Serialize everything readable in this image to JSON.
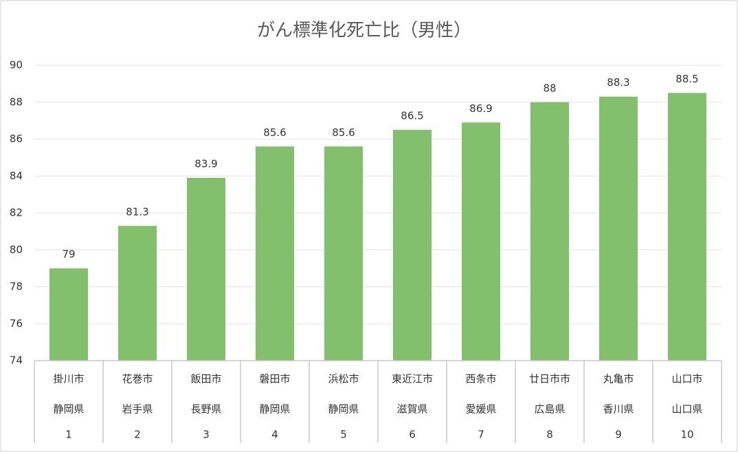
{
  "chart_data": {
    "type": "bar",
    "title": "がん標準化死亡比（男性）",
    "categories": [
      "掛川市",
      "花巻市",
      "飯田市",
      "磐田市",
      "浜松市",
      "東近江市",
      "西条市",
      "廿日市市",
      "丸亀市",
      "山口市"
    ],
    "prefectures": [
      "静岡県",
      "岩手県",
      "長野県",
      "静岡県",
      "静岡県",
      "滋賀県",
      "愛媛県",
      "広島県",
      "香川県",
      "山口県"
    ],
    "ranks": [
      1,
      2,
      3,
      4,
      5,
      6,
      7,
      8,
      9,
      10
    ],
    "values": [
      79,
      81.3,
      83.9,
      85.6,
      85.6,
      86.5,
      86.9,
      88,
      88.3,
      88.5
    ],
    "color": "#82c06c",
    "ylim": [
      74,
      90
    ],
    "yticks": [
      74,
      76,
      78,
      80,
      82,
      84,
      86,
      88,
      90
    ],
    "grid": true
  }
}
